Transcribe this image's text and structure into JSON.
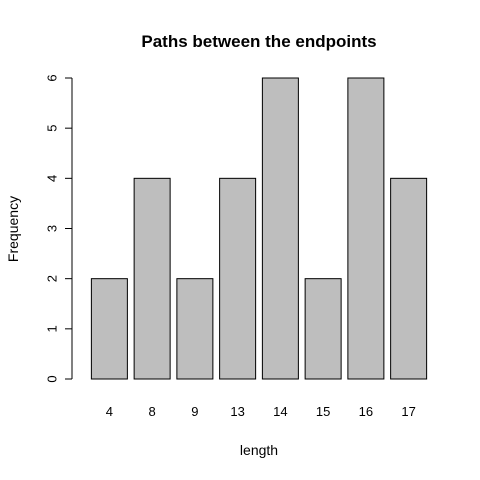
{
  "chart_data": {
    "type": "bar",
    "title": "Paths between the endpoints",
    "xlabel": "length",
    "ylabel": "Frequency",
    "categories": [
      "4",
      "8",
      "9",
      "13",
      "14",
      "15",
      "16",
      "17"
    ],
    "values": [
      2,
      4,
      2,
      4,
      6,
      2,
      6,
      4
    ],
    "ylim": [
      0,
      6
    ],
    "yticks": [
      0,
      1,
      2,
      3,
      4,
      5,
      6
    ],
    "grid": false,
    "colors": {
      "bar_fill": "#bebebe",
      "bar_stroke": "#000000",
      "axis": "#000000",
      "background": "#ffffff"
    }
  }
}
